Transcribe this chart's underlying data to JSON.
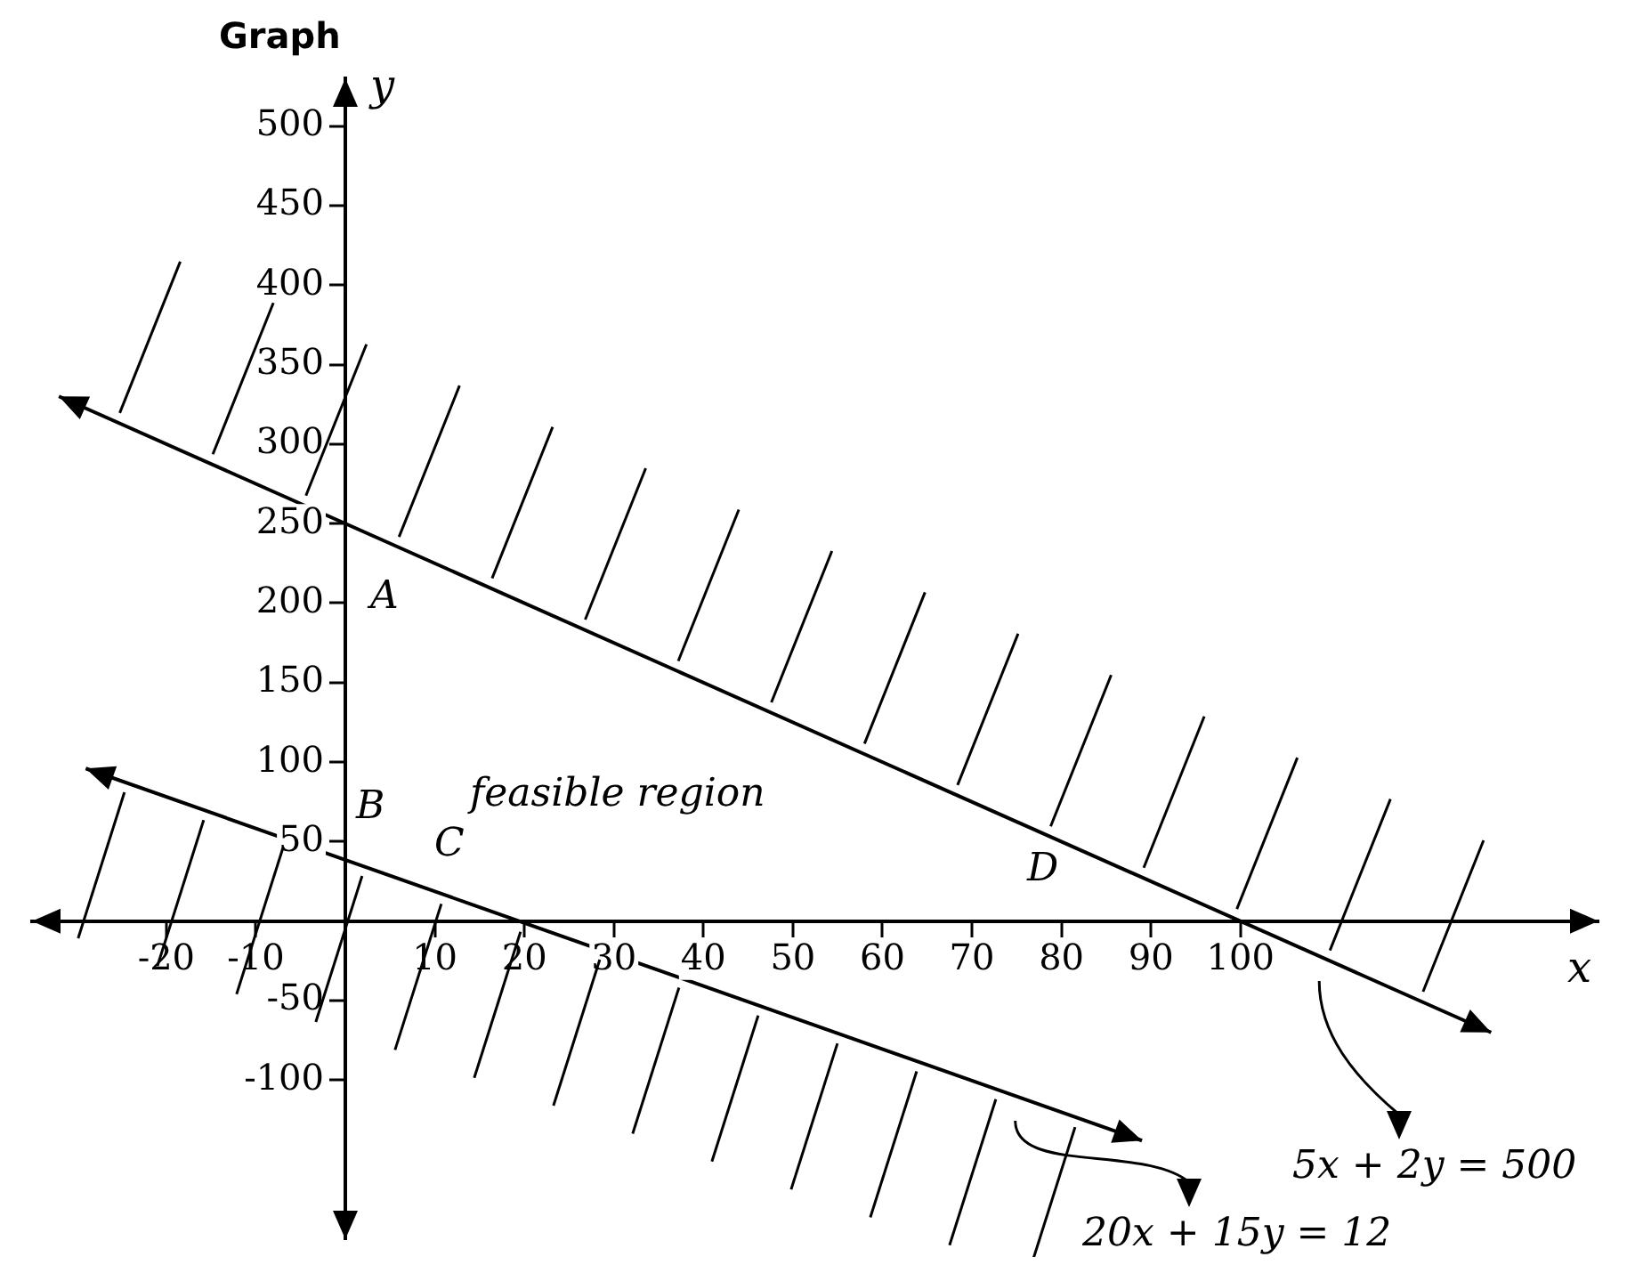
{
  "chart_data": {
    "type": "line",
    "title": "Graph",
    "xlabel": "x",
    "ylabel": "y",
    "xlim": [
      -35,
      140
    ],
    "ylim": [
      -200,
      530
    ],
    "xticks": [
      -20,
      -10,
      10,
      20,
      30,
      40,
      50,
      60,
      70,
      80,
      90,
      100
    ],
    "yticks": [
      -100,
      -50,
      50,
      100,
      150,
      200,
      250,
      300,
      350,
      400,
      450,
      500
    ],
    "grid": false,
    "legend": false,
    "marker": "none",
    "line_style": "solid",
    "series": [
      {
        "color": "#000000",
        "x": [
          -32,
          128
        ],
        "values": [
          330,
          -70
        ]
      },
      {
        "color": "#000000",
        "x": [
          -29,
          89
        ],
        "values": [
          96,
          -138
        ]
      }
    ],
    "annotations": [
      "A",
      "B",
      "feasible region",
      "C",
      "D",
      "5x + 2y = 500",
      "20x + 15y = 12"
    ]
  }
}
